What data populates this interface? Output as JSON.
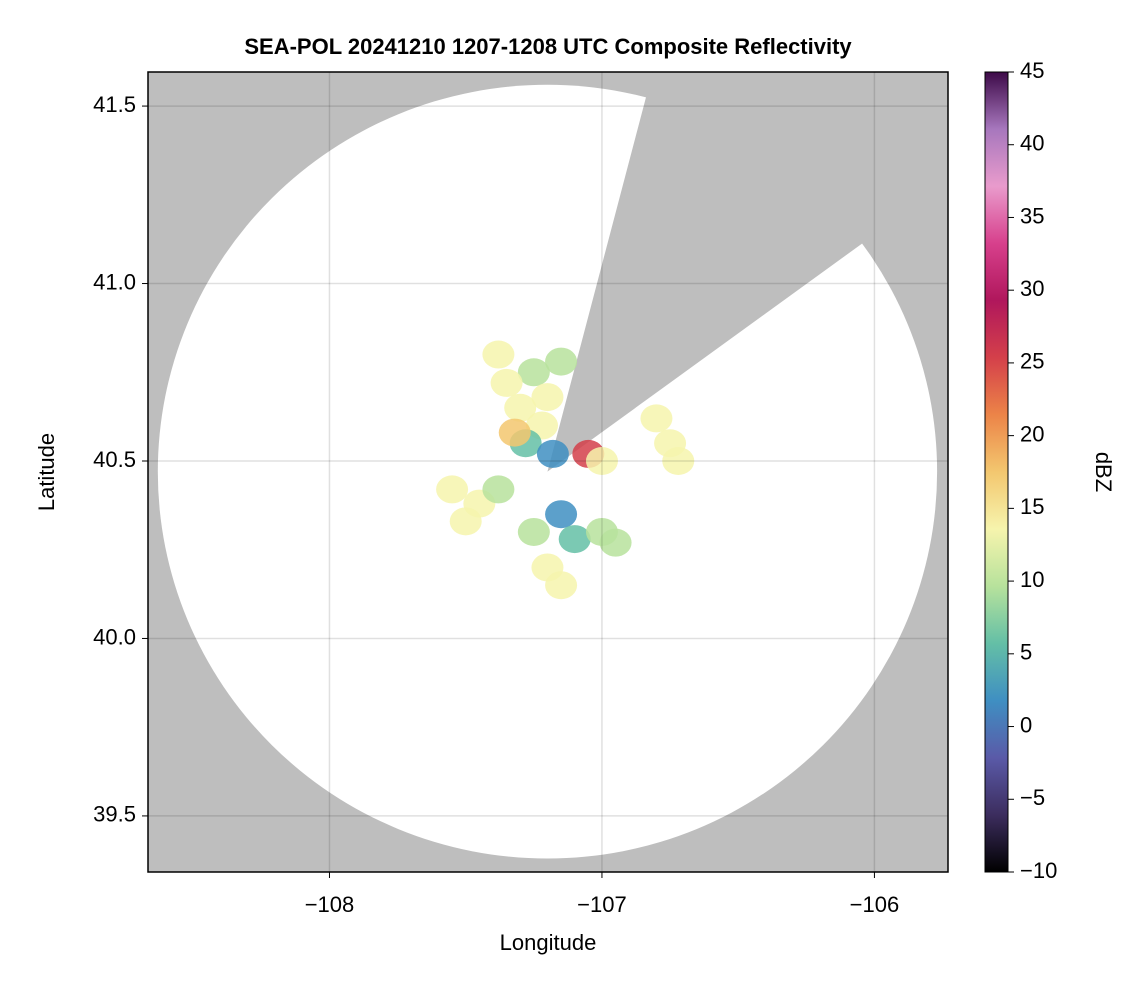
{
  "chart_data": {
    "type": "radar",
    "title": "SEA-POL 20241210 1207-1208 UTC Composite Reflectivity",
    "xlabel": "Longitude",
    "ylabel": "Latitude",
    "xlim": [
      -108.666,
      -105.73
    ],
    "ylim": [
      39.342,
      41.596
    ],
    "xticks": [
      {
        "value": -108,
        "label": "−108"
      },
      {
        "value": -107,
        "label": "−107"
      },
      {
        "value": -106,
        "label": "−106"
      }
    ],
    "yticks": [
      39.5,
      {
        "value": 40.0,
        "label": "40.0"
      },
      40.5,
      {
        "value": 41.0,
        "label": "41.0"
      },
      41.5
    ],
    "grid": true,
    "coverage": {
      "center": [
        -107.2,
        40.47
      ],
      "radius_lon": 1.43,
      "radius_lat": 1.09,
      "blocked_from": [
        -106.84,
        41.52
      ],
      "blocked_to": [
        -106.05,
        41.11
      ]
    },
    "colorbar": {
      "label": "dBZ",
      "clim": [
        -10,
        45
      ],
      "ticks": [
        {
          "value": -10,
          "label": "−10"
        },
        {
          "value": -5,
          "label": "−5"
        },
        0,
        5,
        10,
        15,
        20,
        25,
        30,
        35,
        40,
        45
      ],
      "colormap": [
        "#000000",
        "#3c2d5e",
        "#5a5aa8",
        "#3f8fc2",
        "#64bfa6",
        "#b7e29c",
        "#f6f4ad",
        "#f3c76f",
        "#ec8448",
        "#d4404a",
        "#b0175c",
        "#d7408c",
        "#e99bcc",
        "#a777bd",
        "#3d0a48"
      ]
    },
    "echoes": {
      "lon": [
        -107.25,
        -107.2,
        -107.3,
        -107.35,
        -107.15,
        -107.22,
        -107.28,
        -107.18,
        -107.38,
        -107.32,
        -107.05,
        -107.0,
        -106.75,
        -106.72,
        -106.8,
        -107.55,
        -107.45,
        -107.5,
        -107.38,
        -107.15,
        -107.1,
        -107.2,
        -107.15,
        -107.0,
        -106.95,
        -107.25
      ],
      "lat": [
        40.75,
        40.68,
        40.65,
        40.72,
        40.78,
        40.6,
        40.55,
        40.52,
        40.8,
        40.58,
        40.52,
        40.5,
        40.55,
        40.5,
        40.62,
        40.42,
        40.38,
        40.33,
        40.42,
        40.35,
        40.28,
        40.2,
        40.15,
        40.3,
        40.27,
        40.3
      ],
      "dbz": [
        11,
        13,
        14,
        12,
        10,
        15,
        4,
        2,
        13,
        16,
        24,
        14,
        13,
        14,
        12,
        13,
        15,
        12,
        10,
        2,
        4,
        12,
        13,
        8,
        10,
        10
      ]
    }
  }
}
